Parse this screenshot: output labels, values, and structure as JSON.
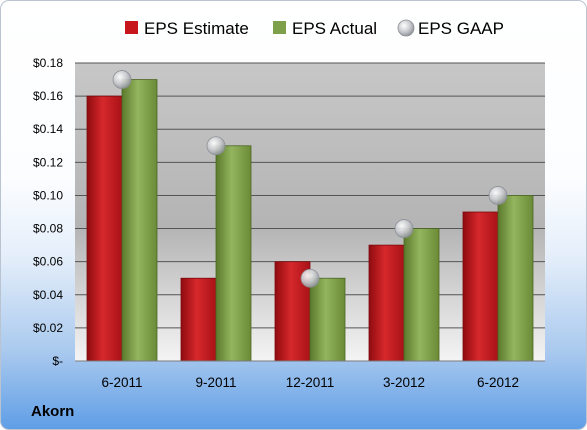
{
  "company": "Akorn",
  "colors": {
    "estimate": "#c8161d",
    "actual": "#7ea04a",
    "gaap": "#c6c8cc"
  },
  "chart_data": {
    "type": "bar",
    "categories": [
      "6-2011",
      "9-2011",
      "12-2011",
      "3-2012",
      "6-2012"
    ],
    "series": [
      {
        "name": "EPS Estimate",
        "values": [
          0.16,
          0.05,
          0.06,
          0.07,
          0.09
        ]
      },
      {
        "name": "EPS Actual",
        "values": [
          0.17,
          0.13,
          0.05,
          0.08,
          0.1
        ]
      },
      {
        "name": "EPS GAAP",
        "values": [
          0.17,
          0.13,
          0.05,
          0.08,
          0.1
        ]
      }
    ],
    "y_ticks": [
      0,
      0.02,
      0.04,
      0.06,
      0.08,
      0.1,
      0.12,
      0.14,
      0.16,
      0.18
    ],
    "y_tick_labels": [
      "$-",
      "$0.02",
      "$0.04",
      "$0.06",
      "$0.08",
      "$0.10",
      "$0.12",
      "$0.14",
      "$0.16",
      "$0.18"
    ],
    "ylim": [
      0,
      0.18
    ],
    "grid": true,
    "legend_position": "top",
    "title": "",
    "xlabel": "",
    "ylabel": ""
  }
}
